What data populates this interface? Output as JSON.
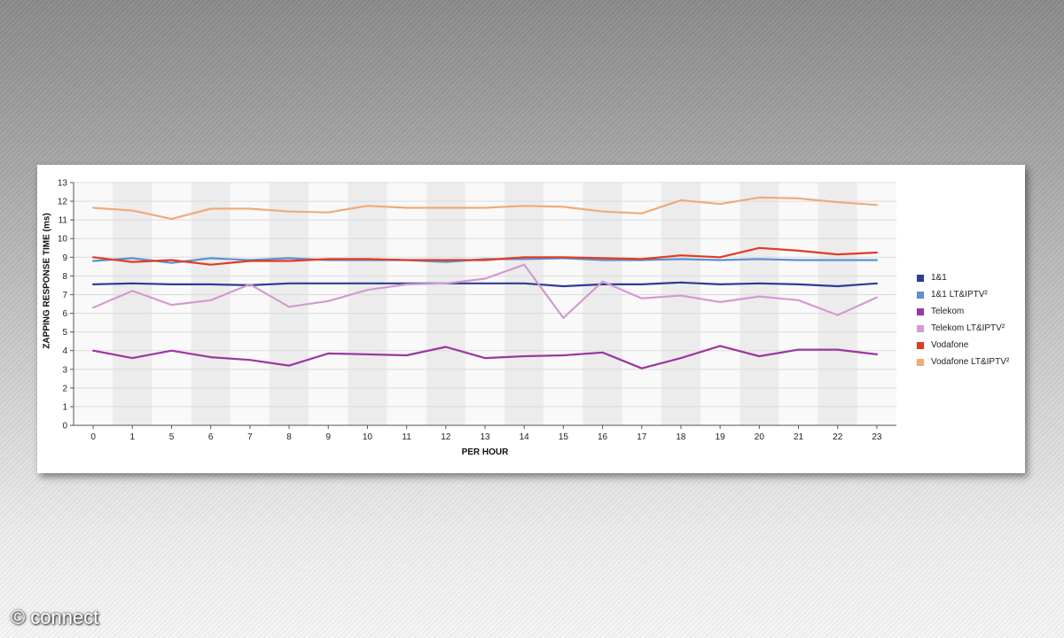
{
  "watermark": "© connect",
  "chart_data": {
    "type": "line",
    "xlabel": "PER HOUR",
    "ylabel": "ZAPPING RESPONSE TIME  (ms)",
    "categories": [
      "0",
      "1",
      "5",
      "6",
      "7",
      "8",
      "9",
      "10",
      "11",
      "12",
      "13",
      "14",
      "15",
      "16",
      "17",
      "18",
      "19",
      "20",
      "21",
      "22",
      "23"
    ],
    "ylim": [
      0,
      13
    ],
    "yticks": [
      0,
      1,
      2,
      3,
      4,
      5,
      6,
      7,
      8,
      9,
      10,
      11,
      12,
      13
    ],
    "grid": true,
    "legend_position": "right",
    "series": [
      {
        "name": "1&1",
        "color": "#2d3c96",
        "values": [
          7.55,
          7.6,
          7.55,
          7.55,
          7.5,
          7.6,
          7.6,
          7.6,
          7.6,
          7.6,
          7.6,
          7.6,
          7.45,
          7.55,
          7.55,
          7.65,
          7.55,
          7.6,
          7.55,
          7.45,
          7.6
        ]
      },
      {
        "name": "1&1 LT&IPTV²",
        "color": "#5b92d0",
        "values": [
          8.8,
          8.95,
          8.7,
          8.95,
          8.85,
          8.95,
          8.85,
          8.85,
          8.85,
          8.75,
          8.9,
          8.9,
          8.95,
          8.85,
          8.85,
          8.9,
          8.85,
          8.9,
          8.85,
          8.85,
          8.85
        ]
      },
      {
        "name": "Telekom",
        "color": "#9b37a0",
        "values": [
          4.0,
          3.6,
          4.0,
          3.65,
          3.5,
          3.2,
          3.85,
          3.8,
          3.75,
          4.2,
          3.6,
          3.7,
          3.75,
          3.9,
          3.05,
          3.6,
          4.25,
          3.7,
          4.05,
          4.05,
          3.8
        ]
      },
      {
        "name": "Telekom LT&IPTV²",
        "color": "#d29bd2",
        "values": [
          6.3,
          7.2,
          6.45,
          6.7,
          7.55,
          6.35,
          6.65,
          7.25,
          7.55,
          7.6,
          7.85,
          8.6,
          5.75,
          7.7,
          6.8,
          6.95,
          6.6,
          6.9,
          6.7,
          5.9,
          6.85
        ]
      },
      {
        "name": "Vodafone",
        "color": "#e23a22",
        "values": [
          9.0,
          8.75,
          8.85,
          8.6,
          8.8,
          8.8,
          8.9,
          8.9,
          8.85,
          8.85,
          8.85,
          9.0,
          9.0,
          8.95,
          8.9,
          9.1,
          9.0,
          9.5,
          9.35,
          9.15,
          9.25
        ]
      },
      {
        "name": "Vodafone LT&IPTV²",
        "color": "#efab78",
        "values": [
          11.65,
          11.5,
          11.05,
          11.6,
          11.6,
          11.45,
          11.4,
          11.75,
          11.65,
          11.65,
          11.65,
          11.75,
          11.7,
          11.45,
          11.35,
          12.05,
          11.85,
          12.2,
          12.15,
          11.95,
          11.8
        ]
      }
    ]
  }
}
